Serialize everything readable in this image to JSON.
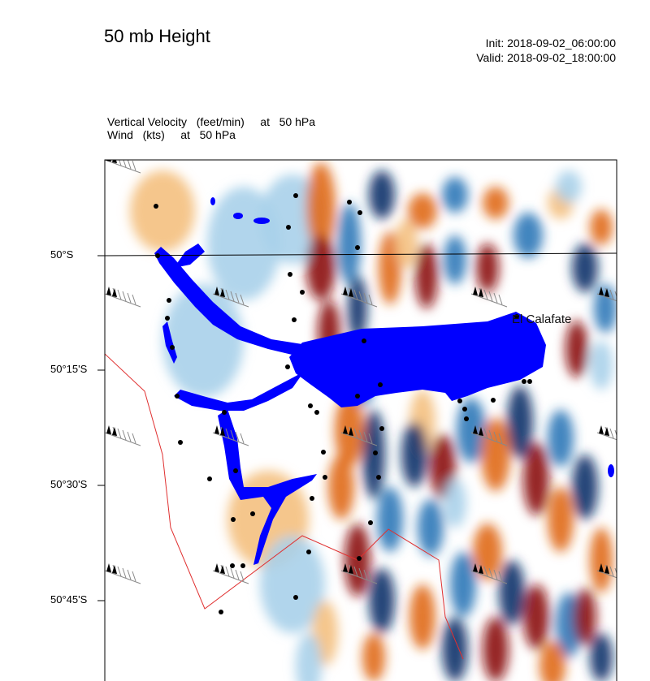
{
  "header": {
    "title": "50 mb Height",
    "init": "Init: 2018-09-02_06:00:00",
    "valid": "Valid: 2018-09-02_18:00:00"
  },
  "fields": {
    "line1": "Vertical Velocity   (feet/min)     at   50 hPa",
    "line2": "Wind   (kts)     at   50 hPa"
  },
  "map": {
    "lat_labels": [
      "50°S",
      "50°15'S",
      "50°30'S",
      "50°45'S"
    ],
    "place": "El Calafate",
    "colors": {
      "water": "#0000ff",
      "border": "#e03030",
      "up_strong": "#8b0a0a",
      "up": "#e06a1a",
      "up_weak": "#f4c080",
      "down_strong": "#10306a",
      "down": "#2f78b8",
      "down_weak": "#a8d0ea"
    }
  }
}
